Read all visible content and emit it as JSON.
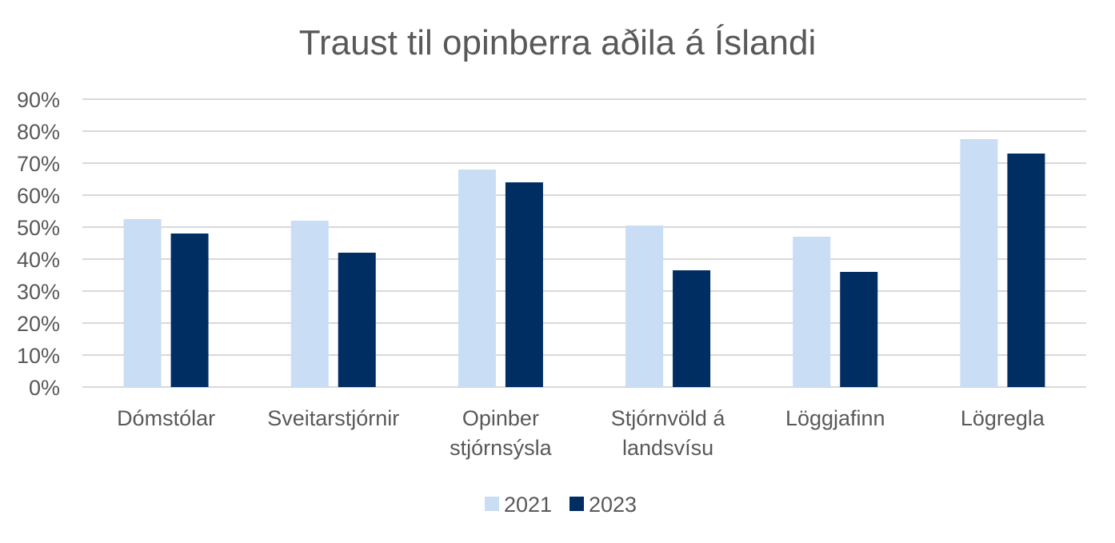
{
  "chart_data": {
    "type": "bar",
    "title": "Traust til opinberra aðila á Íslandi",
    "categories": [
      [
        "Dómstólar"
      ],
      [
        "Sveitarstjórnir"
      ],
      [
        "Opinber",
        "stjórnsýsla"
      ],
      [
        "Stjórnvöld á",
        "landsvísu"
      ],
      [
        "Löggjafinn"
      ],
      [
        "Lögregla"
      ]
    ],
    "series": [
      {
        "name": "2021",
        "color": "#c9ddf4",
        "values": [
          52.5,
          52,
          68,
          50.5,
          47,
          77.5
        ]
      },
      {
        "name": "2023",
        "color": "#002d62",
        "values": [
          48,
          42,
          64,
          36.5,
          36,
          73
        ]
      }
    ],
    "ylim": [
      0,
      90
    ],
    "yticks": [
      0,
      10,
      20,
      30,
      40,
      50,
      60,
      70,
      80,
      90
    ],
    "ytick_labels": [
      "0%",
      "10%",
      "20%",
      "30%",
      "40%",
      "50%",
      "60%",
      "70%",
      "80%",
      "90%"
    ],
    "grid": true,
    "legend_position": "bottom"
  }
}
